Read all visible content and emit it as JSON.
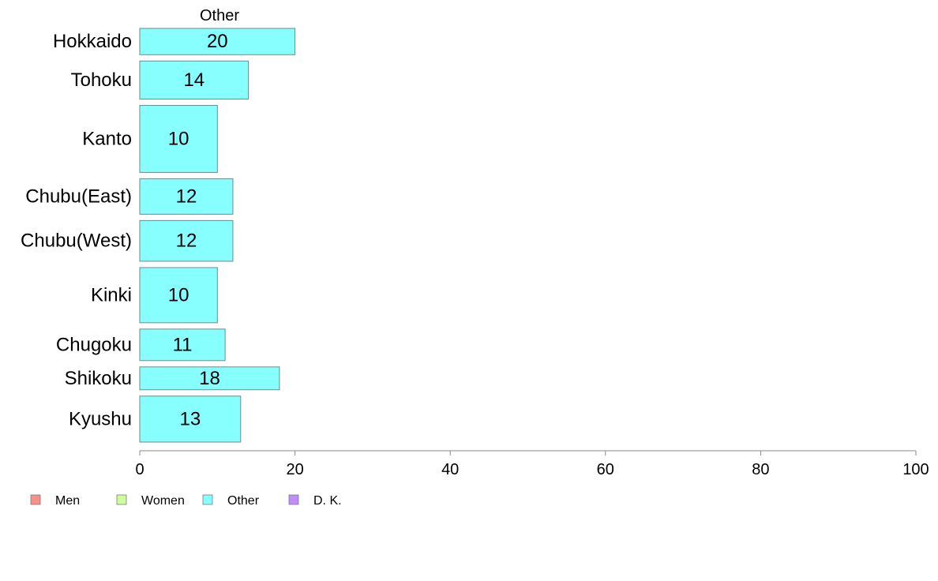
{
  "chart_data": {
    "type": "bar",
    "orientation": "horizontal",
    "panel_title": "Other",
    "categories": [
      "Hokkaido",
      "Tohoku",
      "Kanto",
      "Chubu(East)",
      "Chubu(West)",
      "Kinki",
      "Chugoku",
      "Shikoku",
      "Kyushu"
    ],
    "series": [
      {
        "name": "Other",
        "values": [
          20,
          14,
          10,
          12,
          12,
          10,
          11,
          18,
          13
        ],
        "color": "#87FFFF"
      }
    ],
    "relative_band_sizes": [
      1,
      1.45,
      2.55,
      1.35,
      1.55,
      2.1,
      1.2,
      0.87,
      1.75
    ],
    "data_labels": [
      "20",
      "14",
      "10",
      "12",
      "12",
      "10",
      "11",
      "18",
      "13"
    ],
    "xlim": [
      0,
      100
    ],
    "xticks": [
      0,
      20,
      40,
      60,
      80,
      100
    ],
    "xtick_labels": [
      "0",
      "20",
      "40",
      "60",
      "80",
      "100"
    ],
    "grid": false,
    "legend": {
      "placement": "bottom-left",
      "items": [
        {
          "label": "Men",
          "color": "#F8908C"
        },
        {
          "label": "Women",
          "color": "#CCFF99"
        },
        {
          "label": "Other",
          "color": "#87FFFF"
        },
        {
          "label": "D. K.",
          "color": "#C08CFF"
        }
      ]
    },
    "bar_stroke_color": "#6E8A8A",
    "axis_color": "#888888"
  }
}
